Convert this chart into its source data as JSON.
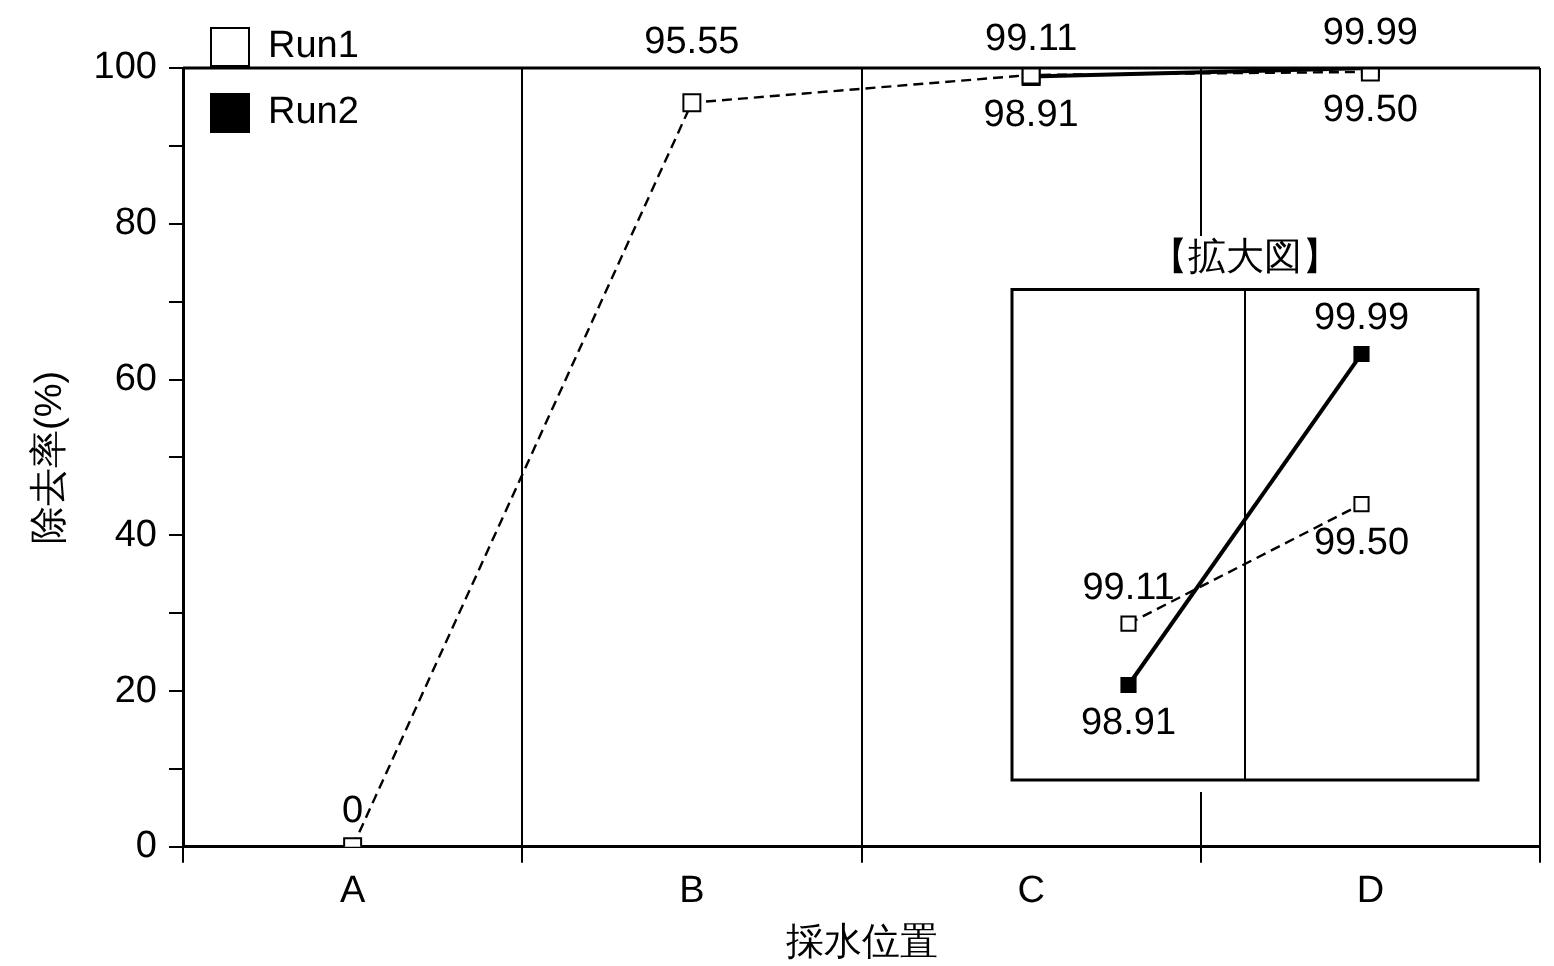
{
  "chart_data": [
    {
      "type": "line",
      "xlabel": "採水位置",
      "ylabel": "除去率(%)",
      "categories": [
        "A",
        "B",
        "C",
        "D"
      ],
      "series": [
        {
          "name": "Run1",
          "color": "#000000",
          "values": [
            0,
            95.55,
            99.11,
            99.5
          ],
          "value_labels": [
            "0",
            "95.55",
            "99.11",
            "99.50"
          ],
          "line_style": "dashed"
        },
        {
          "name": "Run2",
          "color": "#000000",
          "values": [
            null,
            null,
            98.91,
            99.99
          ],
          "value_labels": [
            null,
            null,
            "98.91",
            "99.99"
          ],
          "line_style": "solid"
        }
      ],
      "ylim": [
        0,
        100
      ],
      "yticks": [
        0,
        {
          "value": 10,
          "label": null
        },
        20,
        {
          "value": 30,
          "label": null
        },
        40,
        {
          "value": 50,
          "label": null
        },
        60,
        {
          "value": 70,
          "label": null
        },
        80,
        {
          "value": 90,
          "label": null
        },
        100
      ],
      "grid": "x",
      "legend": "top left",
      "marker": "square"
    },
    {
      "type": "line",
      "title": "【拡大図】",
      "categories": [
        null,
        null
      ],
      "series": [
        {
          "color": "#000000",
          "values": [
            99.11,
            99.5
          ],
          "value_labels": [
            "99.11",
            "99.50"
          ],
          "line_style": "dashed"
        },
        {
          "color": "#000000",
          "values": [
            98.91,
            99.99
          ],
          "value_labels": [
            "98.91",
            "99.99"
          ],
          "line_style": "solid"
        }
      ],
      "grid": "x",
      "marker": "square"
    }
  ]
}
